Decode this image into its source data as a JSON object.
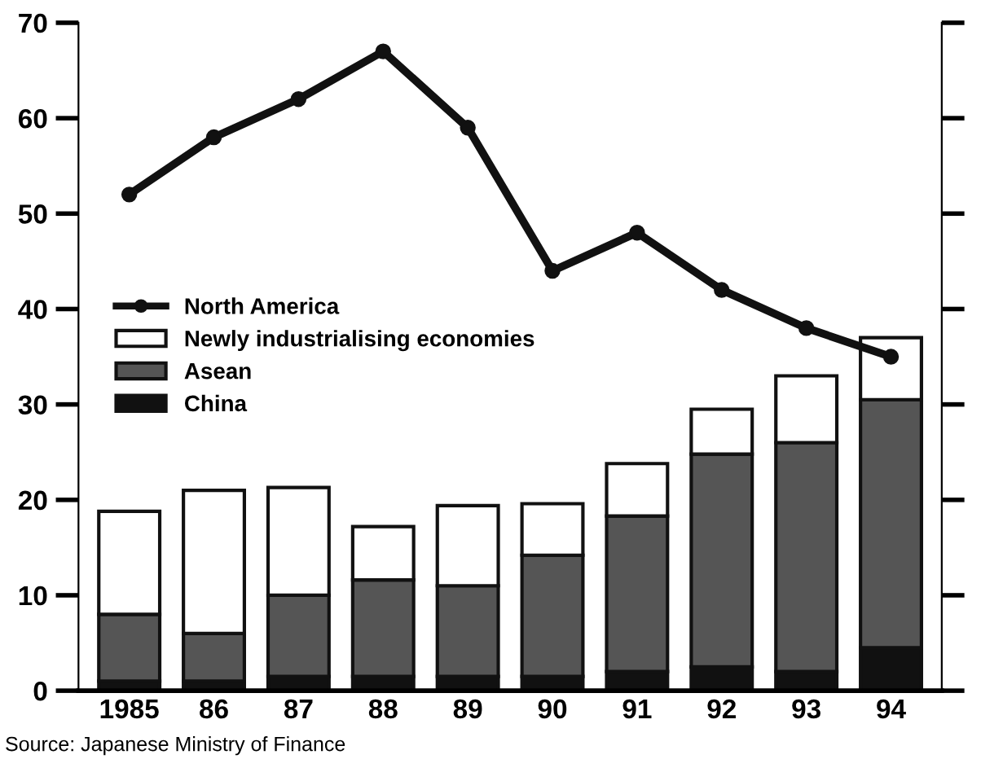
{
  "chart_data": {
    "type": "bar",
    "stacked": true,
    "categories": [
      "1985",
      "86",
      "87",
      "88",
      "89",
      "90",
      "91",
      "92",
      "93",
      "94"
    ],
    "series": [
      {
        "name": "China",
        "color": "#111111",
        "values": [
          1,
          1,
          1.5,
          1.5,
          1.5,
          1.5,
          2,
          2.5,
          2,
          4.5
        ]
      },
      {
        "name": "Asean",
        "color": "#555555",
        "values": [
          7,
          5,
          8.5,
          10.1,
          9.5,
          12.7,
          16.3,
          22.3,
          24,
          26
        ]
      },
      {
        "name": "Newly industrialising economies",
        "color": "#ffffff",
        "values": [
          10.8,
          15,
          11.3,
          5.6,
          8.4,
          5.4,
          5.5,
          4.7,
          7,
          6.5
        ]
      },
      {
        "name": "North America",
        "color": "#111111",
        "type": "line",
        "marker": "circle",
        "values": [
          52,
          58,
          62,
          67,
          59,
          44,
          48,
          42,
          38,
          35
        ]
      }
    ],
    "ylim": [
      0,
      70
    ],
    "yticks": [
      0,
      10,
      20,
      30,
      40,
      50,
      60,
      70
    ],
    "grid": false,
    "legend": "left",
    "annotations": [
      "Source: Japanese Ministry of Finance"
    ]
  }
}
